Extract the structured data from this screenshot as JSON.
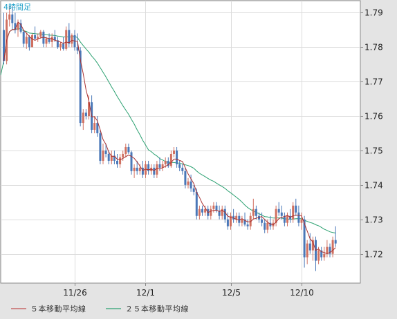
{
  "timeframe_label": "4時間足",
  "legend": [
    {
      "label": "５本移動平均線",
      "color": "#c05050"
    },
    {
      "label": "２５本移動平均線",
      "color": "#2aa070"
    }
  ],
  "colors": {
    "up": "#d07060",
    "down": "#4a78b8",
    "grid": "#dcdcdc",
    "plot_bg": "#ffffff",
    "frame": "#888888",
    "ma5": "#a83030",
    "ma25": "#2aa070"
  },
  "chart_data": {
    "type": "candlestick",
    "ylim": [
      1.7115,
      1.7935
    ],
    "yticks": [
      1.72,
      1.73,
      1.74,
      1.75,
      1.76,
      1.77,
      1.78,
      1.79
    ],
    "ytick_labels": [
      "1.72",
      "1.73",
      "1.74",
      "1.75",
      "1.76",
      "1.77",
      "1.78",
      "1.79"
    ],
    "xticks": [
      {
        "index": 25,
        "label": "11/26"
      },
      {
        "index": 50,
        "label": "12/1"
      },
      {
        "index": 80,
        "label": "12/5"
      },
      {
        "index": 105,
        "label": "12/10"
      }
    ],
    "candles": [
      [
        1.785,
        1.79,
        1.775,
        1.776
      ],
      [
        1.776,
        1.79,
        1.775,
        1.788
      ],
      [
        1.788,
        1.792,
        1.786,
        1.7895
      ],
      [
        1.7895,
        1.792,
        1.785,
        1.787
      ],
      [
        1.787,
        1.79,
        1.784,
        1.785
      ],
      [
        1.785,
        1.788,
        1.783,
        1.787
      ],
      [
        1.787,
        1.788,
        1.784,
        1.7845
      ],
      [
        1.7845,
        1.785,
        1.78,
        1.781
      ],
      [
        1.781,
        1.784,
        1.7795,
        1.783
      ],
      [
        1.783,
        1.7835,
        1.779,
        1.78
      ],
      [
        1.78,
        1.784,
        1.78,
        1.7835
      ],
      [
        1.7835,
        1.786,
        1.782,
        1.7825
      ],
      [
        1.7825,
        1.784,
        1.7815,
        1.783
      ],
      [
        1.783,
        1.785,
        1.7825,
        1.7845
      ],
      [
        1.7845,
        1.785,
        1.78,
        1.781
      ],
      [
        1.781,
        1.783,
        1.78,
        1.7825
      ],
      [
        1.7825,
        1.784,
        1.781,
        1.7815
      ],
      [
        1.7815,
        1.784,
        1.78,
        1.783
      ],
      [
        1.783,
        1.785,
        1.7815,
        1.782
      ],
      [
        1.782,
        1.783,
        1.7795,
        1.78
      ],
      [
        1.78,
        1.7815,
        1.779,
        1.781
      ],
      [
        1.781,
        1.783,
        1.779,
        1.7795
      ],
      [
        1.7795,
        1.786,
        1.779,
        1.785
      ],
      [
        1.785,
        1.787,
        1.78,
        1.781
      ],
      [
        1.781,
        1.784,
        1.78,
        1.7835
      ],
      [
        1.7835,
        1.785,
        1.779,
        1.78
      ],
      [
        1.78,
        1.784,
        1.778,
        1.779
      ],
      [
        1.779,
        1.78,
        1.757,
        1.758
      ],
      [
        1.758,
        1.762,
        1.756,
        1.761
      ],
      [
        1.761,
        1.762,
        1.759,
        1.76
      ],
      [
        1.76,
        1.766,
        1.759,
        1.764
      ],
      [
        1.764,
        1.766,
        1.755,
        1.756
      ],
      [
        1.756,
        1.76,
        1.755,
        1.758
      ],
      [
        1.758,
        1.76,
        1.754,
        1.755
      ],
      [
        1.755,
        1.756,
        1.746,
        1.747
      ],
      [
        1.747,
        1.752,
        1.746,
        1.75
      ],
      [
        1.75,
        1.752,
        1.748,
        1.749
      ],
      [
        1.749,
        1.75,
        1.746,
        1.747
      ],
      [
        1.747,
        1.75,
        1.746,
        1.7485
      ],
      [
        1.7485,
        1.75,
        1.746,
        1.747
      ],
      [
        1.747,
        1.749,
        1.745,
        1.746
      ],
      [
        1.746,
        1.749,
        1.745,
        1.748
      ],
      [
        1.748,
        1.75,
        1.747,
        1.749
      ],
      [
        1.749,
        1.752,
        1.748,
        1.751
      ],
      [
        1.751,
        1.752,
        1.749,
        1.7495
      ],
      [
        1.7495,
        1.75,
        1.743,
        1.744
      ],
      [
        1.744,
        1.746,
        1.742,
        1.745
      ],
      [
        1.745,
        1.747,
        1.743,
        1.744
      ],
      [
        1.744,
        1.746,
        1.743,
        1.745
      ],
      [
        1.745,
        1.747,
        1.742,
        1.743
      ],
      [
        1.743,
        1.747,
        1.742,
        1.746
      ],
      [
        1.746,
        1.747,
        1.743,
        1.744
      ],
      [
        1.744,
        1.746,
        1.743,
        1.745
      ],
      [
        1.745,
        1.746,
        1.742,
        1.743
      ],
      [
        1.743,
        1.747,
        1.742,
        1.746
      ],
      [
        1.746,
        1.748,
        1.744,
        1.745
      ],
      [
        1.745,
        1.747,
        1.744,
        1.746
      ],
      [
        1.746,
        1.748,
        1.745,
        1.747
      ],
      [
        1.747,
        1.748,
        1.745,
        1.7455
      ],
      [
        1.7455,
        1.75,
        1.745,
        1.749
      ],
      [
        1.749,
        1.751,
        1.748,
        1.75
      ],
      [
        1.75,
        1.751,
        1.745,
        1.746
      ],
      [
        1.746,
        1.747,
        1.744,
        1.745
      ],
      [
        1.745,
        1.746,
        1.743,
        1.744
      ],
      [
        1.744,
        1.745,
        1.739,
        1.74
      ],
      [
        1.74,
        1.742,
        1.739,
        1.741
      ],
      [
        1.741,
        1.743,
        1.738,
        1.739
      ],
      [
        1.739,
        1.74,
        1.737,
        1.738
      ],
      [
        1.738,
        1.739,
        1.73,
        1.731
      ],
      [
        1.731,
        1.734,
        1.73,
        1.733
      ],
      [
        1.733,
        1.734,
        1.731,
        1.732
      ],
      [
        1.732,
        1.734,
        1.731,
        1.733
      ],
      [
        1.733,
        1.734,
        1.73,
        1.731
      ],
      [
        1.731,
        1.734,
        1.73,
        1.733
      ],
      [
        1.733,
        1.735,
        1.732,
        1.734
      ],
      [
        1.734,
        1.735,
        1.732,
        1.7325
      ],
      [
        1.7325,
        1.734,
        1.73,
        1.731
      ],
      [
        1.731,
        1.734,
        1.73,
        1.733
      ],
      [
        1.733,
        1.734,
        1.729,
        1.73
      ],
      [
        1.73,
        1.732,
        1.727,
        1.728
      ],
      [
        1.728,
        1.732,
        1.727,
        1.731
      ],
      [
        1.731,
        1.733,
        1.729,
        1.73
      ],
      [
        1.73,
        1.732,
        1.729,
        1.731
      ],
      [
        1.731,
        1.732,
        1.728,
        1.729
      ],
      [
        1.729,
        1.731,
        1.728,
        1.73
      ],
      [
        1.73,
        1.732,
        1.728,
        1.7285
      ],
      [
        1.7285,
        1.73,
        1.727,
        1.728
      ],
      [
        1.728,
        1.732,
        1.727,
        1.731
      ],
      [
        1.731,
        1.736,
        1.73,
        1.733
      ],
      [
        1.733,
        1.734,
        1.73,
        1.731
      ],
      [
        1.731,
        1.732,
        1.729,
        1.73
      ],
      [
        1.73,
        1.732,
        1.728,
        1.729
      ],
      [
        1.729,
        1.73,
        1.726,
        1.727
      ],
      [
        1.727,
        1.73,
        1.726,
        1.729
      ],
      [
        1.729,
        1.731,
        1.727,
        1.728
      ],
      [
        1.728,
        1.73,
        1.727,
        1.729
      ],
      [
        1.729,
        1.734,
        1.728,
        1.733
      ],
      [
        1.733,
        1.735,
        1.731,
        1.732
      ],
      [
        1.732,
        1.734,
        1.73,
        1.731
      ],
      [
        1.731,
        1.732,
        1.728,
        1.729
      ],
      [
        1.729,
        1.732,
        1.728,
        1.731
      ],
      [
        1.731,
        1.733,
        1.729,
        1.73
      ],
      [
        1.73,
        1.735,
        1.729,
        1.734
      ],
      [
        1.734,
        1.736,
        1.731,
        1.732
      ],
      [
        1.732,
        1.734,
        1.728,
        1.729
      ],
      [
        1.729,
        1.732,
        1.727,
        1.73
      ],
      [
        1.73,
        1.731,
        1.716,
        1.719
      ],
      [
        1.719,
        1.724,
        1.717,
        1.723
      ],
      [
        1.723,
        1.726,
        1.72,
        1.721
      ],
      [
        1.721,
        1.725,
        1.718,
        1.724
      ],
      [
        1.724,
        1.725,
        1.715,
        1.718
      ],
      [
        1.718,
        1.722,
        1.717,
        1.721
      ],
      [
        1.721,
        1.722,
        1.718,
        1.719
      ],
      [
        1.719,
        1.722,
        1.718,
        1.72
      ],
      [
        1.72,
        1.724,
        1.719,
        1.722
      ],
      [
        1.722,
        1.723,
        1.719,
        1.72
      ],
      [
        1.72,
        1.725,
        1.719,
        1.724
      ],
      [
        1.724,
        1.728,
        1.722,
        1.723
      ]
    ]
  }
}
